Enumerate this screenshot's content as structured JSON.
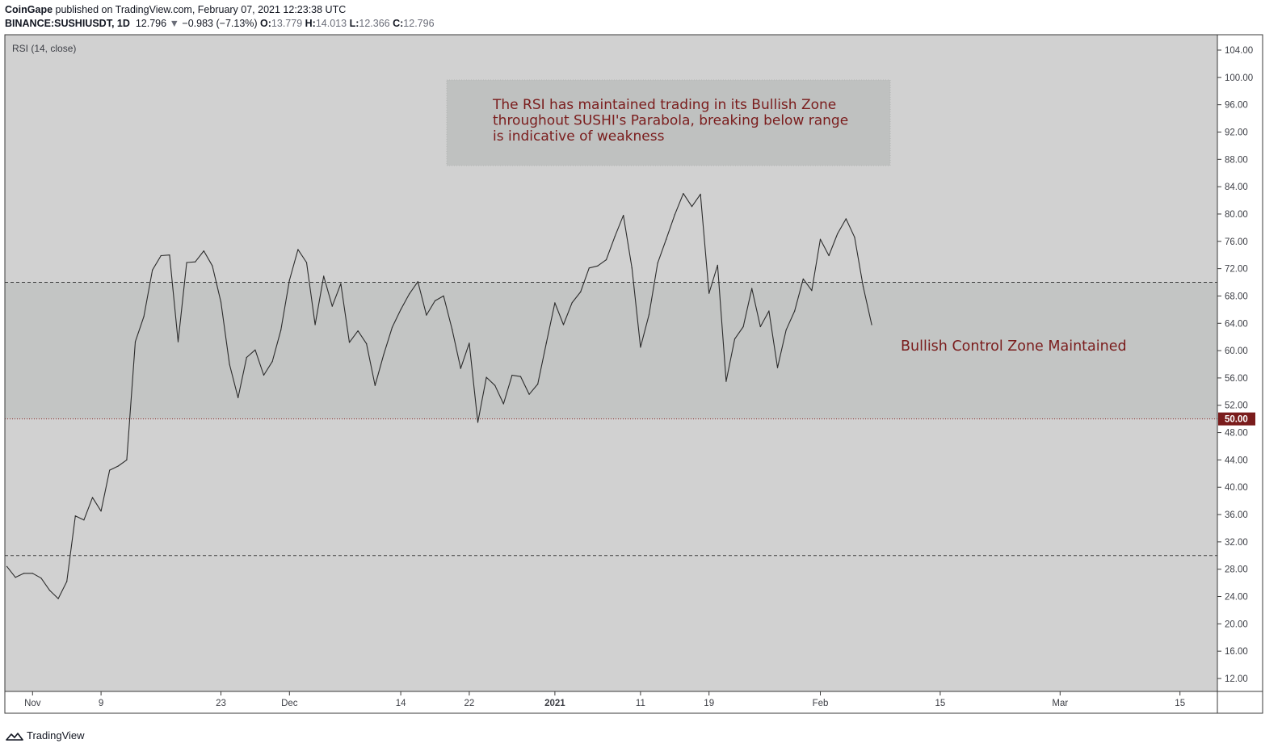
{
  "header": {
    "publisher": "CoinGape",
    "published_text": " published on TradingView.com, February 07, 2021 12:23:38 UTC",
    "symbol": "BINANCE:SUSHIUSDT, 1D",
    "price": "12.796",
    "arrow": "▼",
    "change": "−0.983 (−7.13%)",
    "open_label": "O:",
    "open": "13.779",
    "high_label": "H:",
    "high": "14.013",
    "low_label": "L:",
    "low": "12.366",
    "close_label": "C:",
    "close": "12.796"
  },
  "footer": {
    "brand": "TradingView"
  },
  "colors": {
    "pane_bg": "#d1d1d1",
    "zone_bg": "#c3c5c4",
    "rsi_line": "#2c2c2c",
    "annotation_text": "#7a1c1c",
    "badge_bg": "#7a1c1c",
    "note_bg": "#bfc1c0"
  },
  "chart_data": {
    "type": "line",
    "title": "RSI (14, close)",
    "ylim": [
      10,
      106
    ],
    "y_ticks": [
      "104.00",
      "100.00",
      "96.00",
      "92.00",
      "88.00",
      "84.00",
      "80.00",
      "76.00",
      "72.00",
      "68.00",
      "64.00",
      "60.00",
      "56.00",
      "52.00",
      "48.00",
      "44.00",
      "40.00",
      "36.00",
      "32.00",
      "28.00",
      "24.00",
      "20.00",
      "16.00",
      "12.00"
    ],
    "x_tick_labels": [
      {
        "date": "2020-11-01",
        "label": "Nov"
      },
      {
        "date": "2020-11-09",
        "label": "9"
      },
      {
        "date": "2020-11-23",
        "label": "23"
      },
      {
        "date": "2020-12-01",
        "label": "Dec"
      },
      {
        "date": "2020-12-14",
        "label": "14"
      },
      {
        "date": "2020-12-22",
        "label": "22"
      },
      {
        "date": "2021-01-01",
        "label": "2021"
      },
      {
        "date": "2021-01-11",
        "label": "11"
      },
      {
        "date": "2021-01-19",
        "label": "19"
      },
      {
        "date": "2021-02-01",
        "label": "Feb"
      },
      {
        "date": "2021-02-15",
        "label": "15"
      },
      {
        "date": "2021-03-01",
        "label": "Mar"
      },
      {
        "date": "2021-03-15",
        "label": "15"
      }
    ],
    "levels": {
      "upper": 70,
      "middle": 50,
      "lower": 30
    },
    "middle_badge": "50.00",
    "series": [
      {
        "x": [
          "2020-10-29",
          "2020-10-30",
          "2020-10-31",
          "2020-11-01",
          "2020-11-02",
          "2020-11-03",
          "2020-11-04",
          "2020-11-05",
          "2020-11-06",
          "2020-11-07",
          "2020-11-08",
          "2020-11-09",
          "2020-11-10",
          "2020-11-11",
          "2020-11-12",
          "2020-11-13",
          "2020-11-14",
          "2020-11-15",
          "2020-11-16",
          "2020-11-17",
          "2020-11-18",
          "2020-11-19",
          "2020-11-20",
          "2020-11-21",
          "2020-11-22",
          "2020-11-23",
          "2020-11-24",
          "2020-11-25",
          "2020-11-26",
          "2020-11-27",
          "2020-11-28",
          "2020-11-29",
          "2020-11-30",
          "2020-12-01",
          "2020-12-02",
          "2020-12-03",
          "2020-12-04",
          "2020-12-05",
          "2020-12-06",
          "2020-12-07",
          "2020-12-08",
          "2020-12-09",
          "2020-12-10",
          "2020-12-11",
          "2020-12-12",
          "2020-12-13",
          "2020-12-14",
          "2020-12-15",
          "2020-12-16",
          "2020-12-17",
          "2020-12-18",
          "2020-12-19",
          "2020-12-20",
          "2020-12-21",
          "2020-12-22",
          "2020-12-23",
          "2020-12-24",
          "2020-12-25",
          "2020-12-26",
          "2020-12-27",
          "2020-12-28",
          "2020-12-29",
          "2020-12-30",
          "2020-12-31",
          "2021-01-01",
          "2021-01-02",
          "2021-01-03",
          "2021-01-04",
          "2021-01-05",
          "2021-01-06",
          "2021-01-07",
          "2021-01-08",
          "2021-01-09",
          "2021-01-10",
          "2021-01-11",
          "2021-01-12",
          "2021-01-13",
          "2021-01-14",
          "2021-01-15",
          "2021-01-16",
          "2021-01-17",
          "2021-01-18",
          "2021-01-19",
          "2021-01-20",
          "2021-01-21",
          "2021-01-22",
          "2021-01-23",
          "2021-01-24",
          "2021-01-25",
          "2021-01-26",
          "2021-01-27",
          "2021-01-28",
          "2021-01-29",
          "2021-01-30",
          "2021-01-31",
          "2021-02-01",
          "2021-02-02",
          "2021-02-03",
          "2021-02-04",
          "2021-02-05",
          "2021-02-06",
          "2021-02-07"
        ],
        "values": [
          28.4,
          26.8,
          27.4,
          27.4,
          26.7,
          24.9,
          23.7,
          26.2,
          35.8,
          35.2,
          38.5,
          36.5,
          42.5,
          43.1,
          44.0,
          61.3,
          65.0,
          71.8,
          73.9,
          74.0,
          61.3,
          72.9,
          73.0,
          74.6,
          72.4,
          67.1,
          58.0,
          53.1,
          59.0,
          60.1,
          56.4,
          58.4,
          63.0,
          70.3,
          74.8,
          72.9,
          63.8,
          70.9,
          66.5,
          69.8,
          61.2,
          62.9,
          61.0,
          54.9,
          59.4,
          63.4,
          66.0,
          68.3,
          70.1,
          65.2,
          67.3,
          68.0,
          63.1,
          57.4,
          61.1,
          49.5,
          56.1,
          54.9,
          52.2,
          56.4,
          56.2,
          53.6,
          55.1,
          61.1,
          67.0,
          63.8,
          67.0,
          68.6,
          72.1,
          72.4,
          73.3,
          76.7,
          79.8,
          72.1,
          60.5,
          65.3,
          72.8,
          76.3,
          79.9,
          83.0,
          81.1,
          82.9,
          68.4,
          72.5,
          55.5,
          61.7,
          63.5,
          69.1,
          63.5,
          65.8,
          57.5,
          63.0,
          65.8,
          70.5,
          68.8,
          76.3,
          73.9,
          77.1,
          79.3,
          76.6,
          69.4,
          63.8
        ]
      }
    ]
  },
  "annotations": {
    "note": [
      "The RSI has maintained trading in its Bullish Zone",
      "throughout SUSHI's Parabola, breaking below range",
      "is indicative of weakness"
    ],
    "zone_label": "Bullish Control Zone Maintained"
  }
}
